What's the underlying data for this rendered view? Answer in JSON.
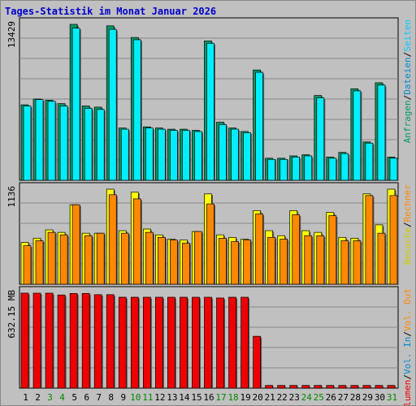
{
  "chart_data": {
    "type": "bar",
    "title": "Tages-Statistik im Monat Januar 2026",
    "days": [
      "1",
      "2",
      "3",
      "4",
      "5",
      "6",
      "7",
      "8",
      "9",
      "10",
      "11",
      "12",
      "13",
      "14",
      "15",
      "16",
      "17",
      "18",
      "19",
      "20",
      "21",
      "22",
      "23",
      "24",
      "25",
      "26",
      "27",
      "28",
      "29",
      "30",
      "31"
    ],
    "weekend_days": [
      "3",
      "4",
      "10",
      "11",
      "17",
      "18",
      "24",
      "25",
      "31"
    ],
    "colors": {
      "title": "#0000cc",
      "frame_bg": "#c0c0c0",
      "panel_border": "#000000",
      "grid": "#888888",
      "weekday_label": "#000000",
      "weekend_label": "#008800",
      "anfragen": "#009966",
      "dateien": "#00eeff",
      "seiten": "#00c8ff",
      "besuche": "#ffff00",
      "rechner": "#ff8800",
      "volumen": "#ee0000"
    },
    "panels": [
      {
        "id": "requests",
        "max_label": "13429",
        "max_value": 13429,
        "legend": [
          {
            "text": "Anfragen",
            "color": "#009966"
          },
          {
            "text": "/",
            "color": "#000000"
          },
          {
            "text": "Dateien",
            "color": "#0088cc"
          },
          {
            "text": "/",
            "color": "#000000"
          },
          {
            "text": "Seiten",
            "color": "#00c8ff"
          }
        ],
        "series": [
          {
            "name": "Anfragen",
            "values": [
              6500,
              7000,
              6900,
              6600,
              13429,
              6400,
              6300,
              13300,
              4500,
              12300,
              4600,
              4500,
              4400,
              4400,
              4300,
              12000,
              5000,
              4500,
              4200,
              9500,
              1900,
              1900,
              2100,
              2200,
              7300,
              2000,
              2400,
              7880,
              3300,
              8400,
              2000
            ]
          },
          {
            "name": "Dateien",
            "values": [
              6400,
              6950,
              6800,
              6400,
              13100,
              6200,
              6100,
              13000,
              4400,
              12100,
              4500,
              4400,
              4300,
              4300,
              4200,
              11800,
              4800,
              4400,
              4100,
              9300,
              1800,
              1800,
              2000,
              2100,
              7100,
              1900,
              2300,
              7700,
              3200,
              8200,
              1900
            ]
          }
        ]
      },
      {
        "id": "visits",
        "max_label": "1136",
        "max_value": 1136,
        "legend": [
          {
            "text": "Besuche",
            "color": "#cccc00"
          },
          {
            "text": "/",
            "color": "#000000"
          },
          {
            "text": "Rechner",
            "color": "#ff8800"
          }
        ],
        "series": [
          {
            "name": "Besuche",
            "values": [
              500,
              550,
              650,
              620,
              950,
              610,
              610,
              1136,
              640,
              1100,
              660,
              590,
              540,
              530,
              630,
              1080,
              590,
              560,
              540,
              880,
              640,
              580,
              880,
              640,
              620,
              860,
              560,
              550,
              1080,
              710,
              1136
            ]
          },
          {
            "name": "Rechner",
            "values": [
              460,
              520,
              620,
              590,
              950,
              580,
              610,
              1070,
              610,
              1020,
              620,
              560,
              530,
              490,
              630,
              960,
              550,
              510,
              530,
              840,
              560,
              540,
              830,
              580,
              580,
              820,
              520,
              520,
              1060,
              610,
              1060
            ]
          }
        ]
      },
      {
        "id": "volume",
        "max_label": "632.15 MB",
        "max_value": 632.15,
        "legend": [
          {
            "text": "Volumen",
            "color": "#ee0000"
          },
          {
            "text": "/",
            "color": "#000000"
          },
          {
            "text": "Vol. In",
            "color": "#0088cc"
          },
          {
            "text": "/",
            "color": "#000000"
          },
          {
            "text": "Vol. Out",
            "color": "#ff8800"
          }
        ],
        "series": [
          {
            "name": "Volumen",
            "values": [
              632.15,
              632,
              632,
              620,
              630,
              630,
              622,
              622,
              605,
              605,
              605,
              605,
              605,
              605,
              605,
              605,
              600,
              605,
              605,
              345,
              18,
              18,
              18,
              18,
              18,
              18,
              18,
              18,
              18,
              18,
              18
            ]
          }
        ]
      }
    ]
  }
}
